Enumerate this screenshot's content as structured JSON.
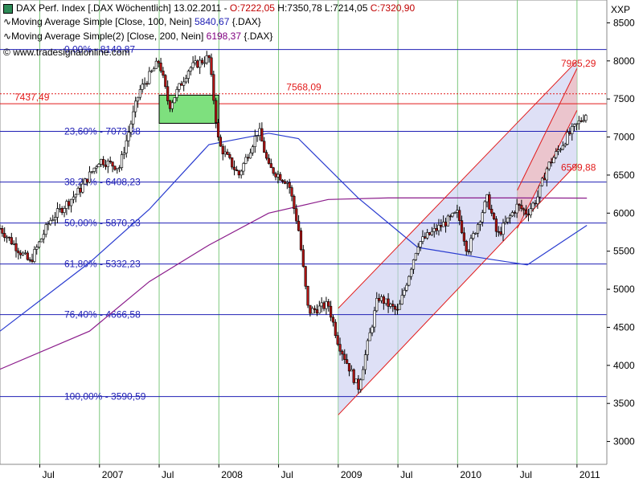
{
  "header": {
    "line1": {
      "title": "DAX Perf. Index [.DAX Wöchentlich] 13.02.2011 - ",
      "open": "O:7222,05",
      "high": " H:7350,78",
      "low": " L:7214,05",
      "close": " C:7320,90"
    },
    "line2": {
      "label": "Moving Average Simple [Close, 100, Nein]",
      "value": "5840,67",
      "suffix": " {.DAX}"
    },
    "line3": {
      "label": "Moving Average Simple(2) [Close, 200, Nein]",
      "value": "6198,37",
      "suffix": " {.DAX}"
    },
    "source": "www.tradesignalonline.com",
    "axis_title": "XXP"
  },
  "colors": {
    "fib": "#1f1fb4",
    "ma100": "#2a3cd0",
    "ma200": "#8b1c8b",
    "channel": "#e21b1b",
    "channel_fill": "#c8cbf0",
    "box": "#7ee07e",
    "red_line": "#e21b1b",
    "label_red": "#e21b1b",
    "candle_up": "#ffffff",
    "candle_down": "#b41414",
    "grid_v": "#7cc87c"
  },
  "chart_data": {
    "type": "candlestick",
    "y_axis": {
      "min": 2700,
      "max": 8800,
      "ticks": [
        3000,
        3500,
        4000,
        4500,
        5000,
        5500,
        6000,
        6500,
        7000,
        7500,
        8000,
        8500
      ]
    },
    "x_axis": {
      "start": "2006-03",
      "end": "2011-04",
      "labels": [
        {
          "text": "Jul",
          "at": "2006-07"
        },
        {
          "text": "2007",
          "at": "2007-01"
        },
        {
          "text": "Jul",
          "at": "2007-07"
        },
        {
          "text": "2008",
          "at": "2008-01"
        },
        {
          "text": "Jul",
          "at": "2008-07"
        },
        {
          "text": "2009",
          "at": "2009-01"
        },
        {
          "text": "Jul",
          "at": "2009-07"
        },
        {
          "text": "2010",
          "at": "2010-01"
        },
        {
          "text": "Jul",
          "at": "2010-07"
        },
        {
          "text": "2011",
          "at": "2011-01"
        }
      ]
    },
    "fib_levels": [
      {
        "label": "0,00% - 8149,87",
        "value": 8149.87
      },
      {
        "label": "23,60% - 7073,88",
        "value": 7073.88
      },
      {
        "label": "38,20% - 6408,23",
        "value": 6408.23
      },
      {
        "label": "50,00% - 5870,23",
        "value": 5870.23
      },
      {
        "label": "61,80% - 5332,23",
        "value": 5332.23
      },
      {
        "label": "76,40% - 4666,58",
        "value": 4666.58
      },
      {
        "label": "100,00% - 3590,59",
        "value": 3590.59
      }
    ],
    "red_level": {
      "value": 7437.49,
      "label": "7437,49"
    },
    "red_dotted": {
      "value": 7568.09,
      "label": "7568,09"
    },
    "channel_labels": [
      {
        "text": "7965,29",
        "value": 7965.29
      },
      {
        "text": "6599,88",
        "value": 6599.88
      }
    ],
    "anchors": [
      [
        "2006-03",
        5800
      ],
      [
        "2006-05",
        5500
      ],
      [
        "2006-06",
        5350
      ],
      [
        "2006-08",
        5900
      ],
      [
        "2006-11",
        6300
      ],
      [
        "2007-01",
        6700
      ],
      [
        "2007-03",
        6600
      ],
      [
        "2007-05",
        7600
      ],
      [
        "2007-07",
        8000
      ],
      [
        "2007-08",
        7400
      ],
      [
        "2007-10",
        7900
      ],
      [
        "2007-12",
        8050
      ],
      [
        "2008-01",
        6900
      ],
      [
        "2008-03",
        6500
      ],
      [
        "2008-05",
        7100
      ],
      [
        "2008-06",
        6600
      ],
      [
        "2008-08",
        6400
      ],
      [
        "2008-09",
        5800
      ],
      [
        "2008-10",
        4700
      ],
      [
        "2008-12",
        4800
      ],
      [
        "2009-01",
        4300
      ],
      [
        "2009-03",
        3700
      ],
      [
        "2009-05",
        4900
      ],
      [
        "2009-07",
        4700
      ],
      [
        "2009-09",
        5600
      ],
      [
        "2009-11",
        5800
      ],
      [
        "2010-01",
        6000
      ],
      [
        "2010-02",
        5500
      ],
      [
        "2010-04",
        6200
      ],
      [
        "2010-05",
        5700
      ],
      [
        "2010-07",
        6100
      ],
      [
        "2010-08",
        6000
      ],
      [
        "2010-09",
        6200
      ],
      [
        "2010-10",
        6600
      ],
      [
        "2010-12",
        7000
      ],
      [
        "2011-02",
        7320
      ]
    ],
    "ma100": [
      [
        "2006-03",
        4450
      ],
      [
        "2006-12",
        5350
      ],
      [
        "2007-06",
        6050
      ],
      [
        "2007-12",
        6900
      ],
      [
        "2008-06",
        7050
      ],
      [
        "2008-09",
        6980
      ],
      [
        "2009-03",
        6200
      ],
      [
        "2009-09",
        5550
      ],
      [
        "2010-04",
        5400
      ],
      [
        "2010-08",
        5320
      ],
      [
        "2011-02",
        5840
      ]
    ],
    "ma200": [
      [
        "2006-03",
        3950
      ],
      [
        "2006-12",
        4450
      ],
      [
        "2007-06",
        5100
      ],
      [
        "2007-12",
        5580
      ],
      [
        "2008-06",
        6000
      ],
      [
        "2008-12",
        6180
      ],
      [
        "2009-06",
        6200
      ],
      [
        "2010-06",
        6200
      ],
      [
        "2011-02",
        6198
      ]
    ],
    "channel_outer": [
      [
        "2009-01",
        4750
      ],
      [
        "2011-01",
        8000
      ],
      [
        "2009-01",
        3350
      ],
      [
        "2011-01",
        6650
      ]
    ],
    "channel_inner": [
      [
        "2010-07",
        6300
      ],
      [
        "2011-01",
        7900
      ],
      [
        "2010-07",
        5800
      ],
      [
        "2011-01",
        7350
      ]
    ],
    "box": {
      "x0": "2007-07",
      "x1": "2008-01",
      "y0": 7550,
      "y1": 7180
    }
  }
}
